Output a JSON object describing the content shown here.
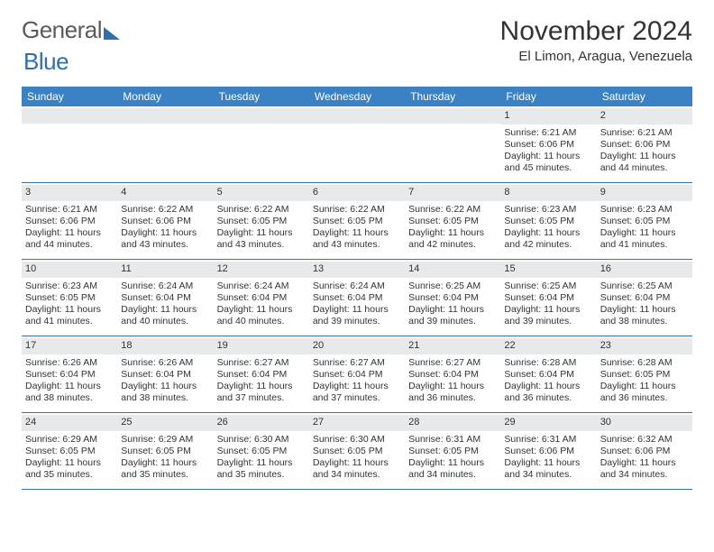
{
  "logo": {
    "part1": "General",
    "part2": "Blue"
  },
  "title": "November 2024",
  "location": "El Limon, Aragua, Venezuela",
  "colors": {
    "header_bg": "#3b82c4",
    "header_text": "#ffffff",
    "daynum_bg": "#e7e9eb",
    "rule": "#3b6fa6",
    "text": "#333333",
    "logo_gray": "#5b5b5b",
    "logo_blue": "#2f6fb0"
  },
  "day_headers": [
    "Sunday",
    "Monday",
    "Tuesday",
    "Wednesday",
    "Thursday",
    "Friday",
    "Saturday"
  ],
  "weeks": [
    [
      {
        "day": "",
        "lines": []
      },
      {
        "day": "",
        "lines": []
      },
      {
        "day": "",
        "lines": []
      },
      {
        "day": "",
        "lines": []
      },
      {
        "day": "",
        "lines": []
      },
      {
        "day": "1",
        "lines": [
          "Sunrise: 6:21 AM",
          "Sunset: 6:06 PM",
          "Daylight: 11 hours and 45 minutes."
        ]
      },
      {
        "day": "2",
        "lines": [
          "Sunrise: 6:21 AM",
          "Sunset: 6:06 PM",
          "Daylight: 11 hours and 44 minutes."
        ]
      }
    ],
    [
      {
        "day": "3",
        "lines": [
          "Sunrise: 6:21 AM",
          "Sunset: 6:06 PM",
          "Daylight: 11 hours and 44 minutes."
        ]
      },
      {
        "day": "4",
        "lines": [
          "Sunrise: 6:22 AM",
          "Sunset: 6:06 PM",
          "Daylight: 11 hours and 43 minutes."
        ]
      },
      {
        "day": "5",
        "lines": [
          "Sunrise: 6:22 AM",
          "Sunset: 6:05 PM",
          "Daylight: 11 hours and 43 minutes."
        ]
      },
      {
        "day": "6",
        "lines": [
          "Sunrise: 6:22 AM",
          "Sunset: 6:05 PM",
          "Daylight: 11 hours and 43 minutes."
        ]
      },
      {
        "day": "7",
        "lines": [
          "Sunrise: 6:22 AM",
          "Sunset: 6:05 PM",
          "Daylight: 11 hours and 42 minutes."
        ]
      },
      {
        "day": "8",
        "lines": [
          "Sunrise: 6:23 AM",
          "Sunset: 6:05 PM",
          "Daylight: 11 hours and 42 minutes."
        ]
      },
      {
        "day": "9",
        "lines": [
          "Sunrise: 6:23 AM",
          "Sunset: 6:05 PM",
          "Daylight: 11 hours and 41 minutes."
        ]
      }
    ],
    [
      {
        "day": "10",
        "lines": [
          "Sunrise: 6:23 AM",
          "Sunset: 6:05 PM",
          "Daylight: 11 hours and 41 minutes."
        ]
      },
      {
        "day": "11",
        "lines": [
          "Sunrise: 6:24 AM",
          "Sunset: 6:04 PM",
          "Daylight: 11 hours and 40 minutes."
        ]
      },
      {
        "day": "12",
        "lines": [
          "Sunrise: 6:24 AM",
          "Sunset: 6:04 PM",
          "Daylight: 11 hours and 40 minutes."
        ]
      },
      {
        "day": "13",
        "lines": [
          "Sunrise: 6:24 AM",
          "Sunset: 6:04 PM",
          "Daylight: 11 hours and 39 minutes."
        ]
      },
      {
        "day": "14",
        "lines": [
          "Sunrise: 6:25 AM",
          "Sunset: 6:04 PM",
          "Daylight: 11 hours and 39 minutes."
        ]
      },
      {
        "day": "15",
        "lines": [
          "Sunrise: 6:25 AM",
          "Sunset: 6:04 PM",
          "Daylight: 11 hours and 39 minutes."
        ]
      },
      {
        "day": "16",
        "lines": [
          "Sunrise: 6:25 AM",
          "Sunset: 6:04 PM",
          "Daylight: 11 hours and 38 minutes."
        ]
      }
    ],
    [
      {
        "day": "17",
        "lines": [
          "Sunrise: 6:26 AM",
          "Sunset: 6:04 PM",
          "Daylight: 11 hours and 38 minutes."
        ]
      },
      {
        "day": "18",
        "lines": [
          "Sunrise: 6:26 AM",
          "Sunset: 6:04 PM",
          "Daylight: 11 hours and 38 minutes."
        ]
      },
      {
        "day": "19",
        "lines": [
          "Sunrise: 6:27 AM",
          "Sunset: 6:04 PM",
          "Daylight: 11 hours and 37 minutes."
        ]
      },
      {
        "day": "20",
        "lines": [
          "Sunrise: 6:27 AM",
          "Sunset: 6:04 PM",
          "Daylight: 11 hours and 37 minutes."
        ]
      },
      {
        "day": "21",
        "lines": [
          "Sunrise: 6:27 AM",
          "Sunset: 6:04 PM",
          "Daylight: 11 hours and 36 minutes."
        ]
      },
      {
        "day": "22",
        "lines": [
          "Sunrise: 6:28 AM",
          "Sunset: 6:04 PM",
          "Daylight: 11 hours and 36 minutes."
        ]
      },
      {
        "day": "23",
        "lines": [
          "Sunrise: 6:28 AM",
          "Sunset: 6:05 PM",
          "Daylight: 11 hours and 36 minutes."
        ]
      }
    ],
    [
      {
        "day": "24",
        "lines": [
          "Sunrise: 6:29 AM",
          "Sunset: 6:05 PM",
          "Daylight: 11 hours and 35 minutes."
        ]
      },
      {
        "day": "25",
        "lines": [
          "Sunrise: 6:29 AM",
          "Sunset: 6:05 PM",
          "Daylight: 11 hours and 35 minutes."
        ]
      },
      {
        "day": "26",
        "lines": [
          "Sunrise: 6:30 AM",
          "Sunset: 6:05 PM",
          "Daylight: 11 hours and 35 minutes."
        ]
      },
      {
        "day": "27",
        "lines": [
          "Sunrise: 6:30 AM",
          "Sunset: 6:05 PM",
          "Daylight: 11 hours and 34 minutes."
        ]
      },
      {
        "day": "28",
        "lines": [
          "Sunrise: 6:31 AM",
          "Sunset: 6:05 PM",
          "Daylight: 11 hours and 34 minutes."
        ]
      },
      {
        "day": "29",
        "lines": [
          "Sunrise: 6:31 AM",
          "Sunset: 6:06 PM",
          "Daylight: 11 hours and 34 minutes."
        ]
      },
      {
        "day": "30",
        "lines": [
          "Sunrise: 6:32 AM",
          "Sunset: 6:06 PM",
          "Daylight: 11 hours and 34 minutes."
        ]
      }
    ]
  ]
}
